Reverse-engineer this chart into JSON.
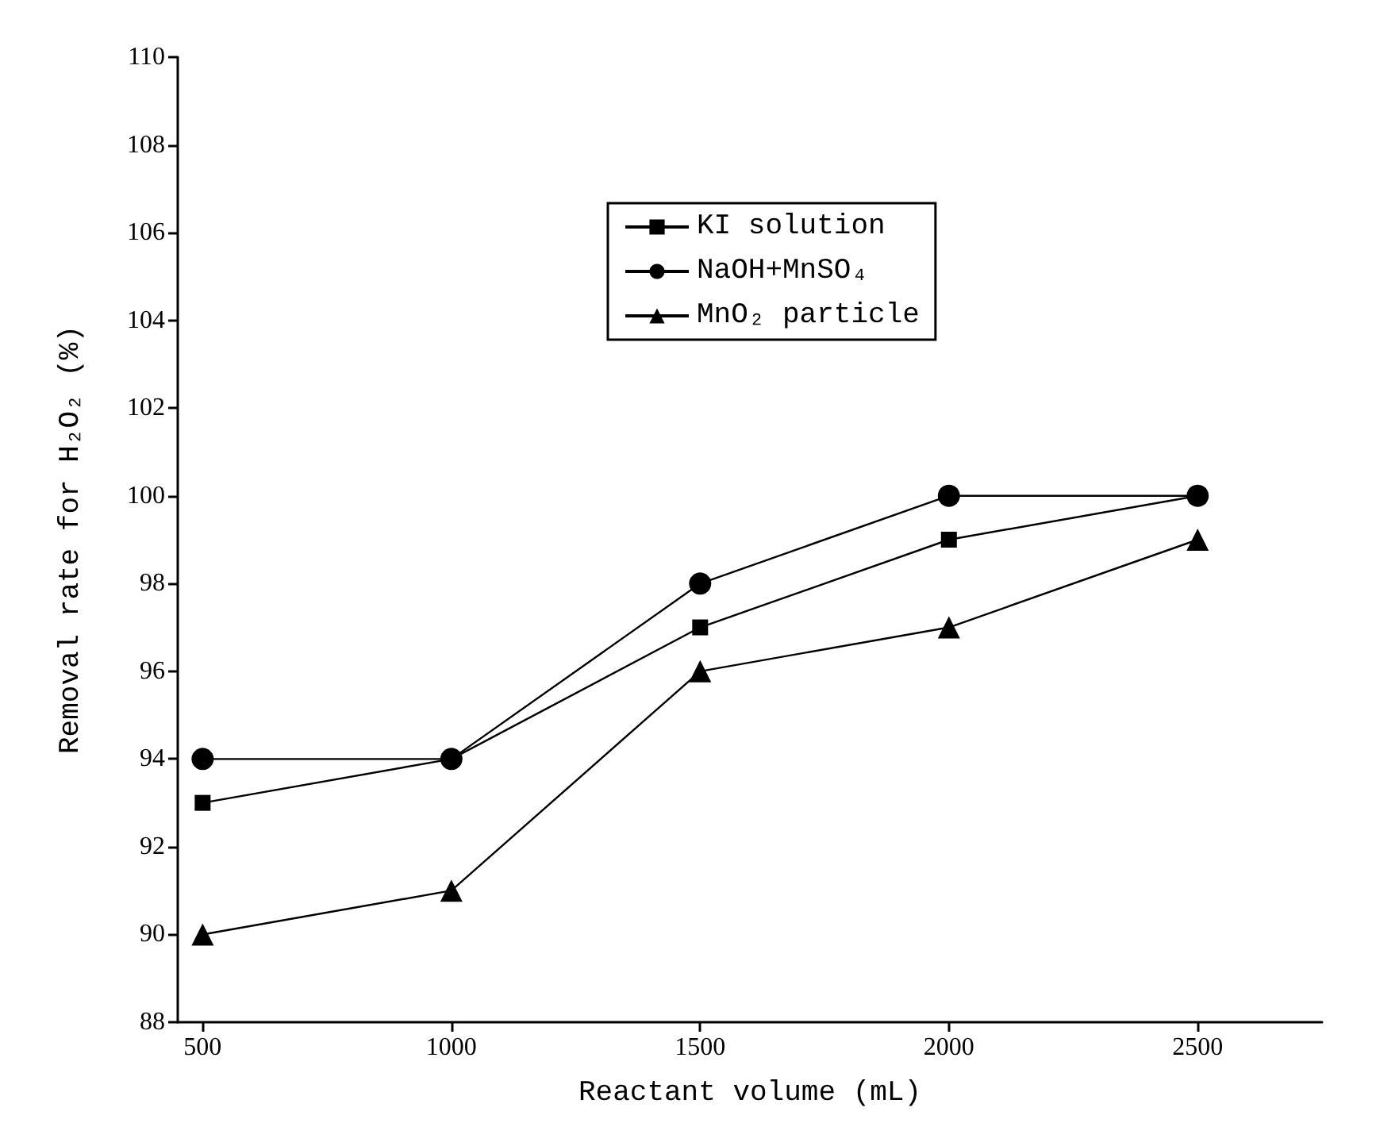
{
  "chart_data": {
    "type": "line",
    "xlabel": "Reactant volume (mL)",
    "ylabel": "Removal rate for H₂O₂ (%)",
    "x": [
      500,
      1000,
      1500,
      2000,
      2500
    ],
    "series": [
      {
        "name": "KI solution",
        "color": "#000000",
        "marker": "square",
        "values": [
          93,
          94,
          97,
          99,
          100
        ]
      },
      {
        "name": "NaOH+MnSO₄",
        "color": "#000000",
        "marker": "circle",
        "values": [
          94,
          94,
          98,
          100,
          100
        ]
      },
      {
        "name": "MnO₂ particle",
        "color": "#000000",
        "marker": "triangle",
        "values": [
          90,
          91,
          96,
          97,
          99
        ]
      }
    ],
    "xlim": [
      450,
      2750
    ],
    "xticks": [
      500,
      1000,
      1500,
      2000,
      2500
    ],
    "ylim": [
      88,
      110
    ],
    "yticks": [
      88,
      90,
      92,
      94,
      96,
      98,
      100,
      102,
      104,
      106,
      108,
      110
    ],
    "grid": false,
    "legend": "top",
    "line_style": "solid"
  }
}
